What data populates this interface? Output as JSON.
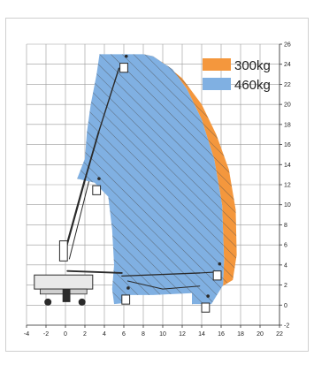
{
  "chart_data": {
    "type": "area",
    "x_ticks": [
      "-4",
      "-2",
      "0",
      "2",
      "4",
      "6",
      "8",
      "10",
      "12",
      "14",
      "16",
      "18",
      "20",
      "22"
    ],
    "y_ticks": [
      "-2",
      "0",
      "2",
      "4",
      "6",
      "8",
      "10",
      "12",
      "14",
      "16",
      "18",
      "20",
      "22",
      "24",
      "26"
    ],
    "xlim": [
      -4,
      22
    ],
    "ylim": [
      -2,
      26
    ],
    "grid": true,
    "legend_position": "top-right",
    "series": [
      {
        "name": "300kg",
        "color": "#f4973d",
        "points": [
          [
            8,
            25
          ],
          [
            10,
            24.2
          ],
          [
            12,
            22.6
          ],
          [
            14,
            20
          ],
          [
            15.5,
            17
          ],
          [
            16.8,
            13.5
          ],
          [
            17.5,
            9.5
          ],
          [
            17.6,
            5
          ],
          [
            17.2,
            2.5
          ],
          [
            16,
            1.8
          ],
          [
            14,
            0.2
          ],
          [
            13,
            0.1
          ],
          [
            13,
            1.2
          ],
          [
            16.2,
            2
          ],
          [
            16.3,
            4.5
          ],
          [
            16.1,
            10
          ],
          [
            15.3,
            14.5
          ],
          [
            14,
            18.5
          ],
          [
            12.5,
            21.5
          ],
          [
            11,
            23.5
          ],
          [
            9,
            24.8
          ]
        ]
      },
      {
        "name": "460kg",
        "color": "#80b0e2",
        "points": [
          [
            3.5,
            25
          ],
          [
            8,
            25
          ],
          [
            9,
            24.8
          ],
          [
            11,
            23.5
          ],
          [
            12.5,
            21.5
          ],
          [
            14,
            18.5
          ],
          [
            15.3,
            14.5
          ],
          [
            16.1,
            10
          ],
          [
            16.3,
            4.5
          ],
          [
            16.2,
            2
          ],
          [
            15,
            0.1
          ],
          [
            13,
            0.1
          ],
          [
            13,
            1.2
          ],
          [
            9,
            1
          ],
          [
            6.5,
            1
          ],
          [
            6,
            0.2
          ],
          [
            5,
            0.1
          ],
          [
            4.8,
            1.6
          ],
          [
            5,
            4
          ],
          [
            4.8,
            7.5
          ],
          [
            4.4,
            10.8
          ],
          [
            3,
            12.2
          ],
          [
            1.2,
            12.6
          ],
          [
            2,
            14.6
          ],
          [
            2.2,
            17.2
          ],
          [
            2.6,
            20
          ],
          [
            3.2,
            23
          ]
        ]
      }
    ]
  },
  "colors": {
    "background": "#ffffff",
    "grid": "#9a9a9a",
    "axis": "#333333",
    "hatch": "#4a4a4a",
    "machine": "#2a2a2a"
  }
}
